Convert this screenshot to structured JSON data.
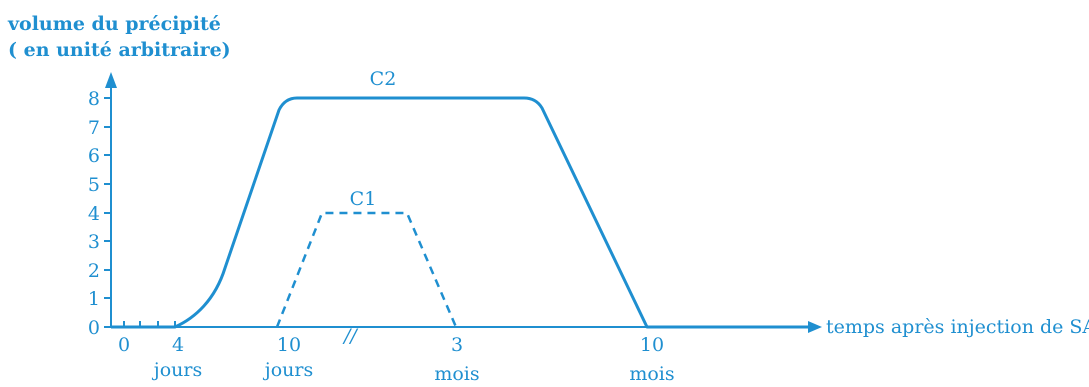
{
  "chart_data": {
    "type": "line",
    "ylabel_line1": "volume du précipité",
    "ylabel_line2": "( en unité arbitraire)",
    "xlabel": "temps après injection de SAH",
    "ylim": [
      0,
      8
    ],
    "y_ticks": [
      "0",
      "1",
      "2",
      "3",
      "4",
      "5",
      "6",
      "7",
      "8"
    ],
    "x_ticks": [
      {
        "id": "t0",
        "value": "0",
        "unit": ""
      },
      {
        "id": "t4",
        "value": "4",
        "unit": "jours"
      },
      {
        "id": "t10j",
        "value": "10",
        "unit": "jours"
      },
      {
        "id": "t3m",
        "value": "3",
        "unit": "mois"
      },
      {
        "id": "t10m",
        "value": "10",
        "unit": "mois"
      }
    ],
    "axis_break": "//",
    "grid": false,
    "colors": {
      "ink": "#1f8fd0"
    },
    "series": [
      {
        "name": "C2",
        "style": "solid",
        "points": [
          [
            "0",
            0
          ],
          [
            "4 jours",
            0
          ],
          [
            "10 jours",
            8
          ],
          [
            "plateau end",
            8
          ],
          [
            "10 mois",
            0
          ],
          [
            "end",
            0
          ]
        ]
      },
      {
        "name": "C1",
        "style": "dashed",
        "points": [
          [
            "~9 jours",
            0
          ],
          [
            "after 10 jours",
            4
          ],
          [
            "before 3 mois",
            4
          ],
          [
            "3 mois",
            0
          ]
        ]
      }
    ]
  }
}
